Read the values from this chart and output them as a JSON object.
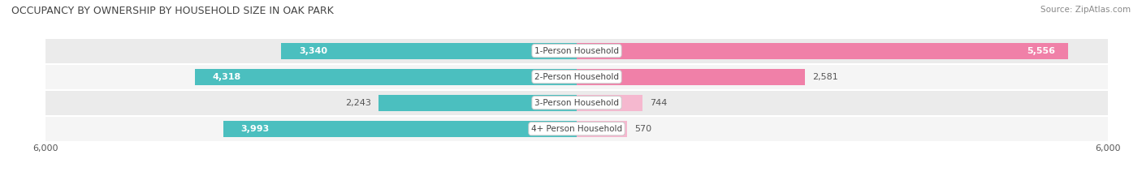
{
  "title": "OCCUPANCY BY OWNERSHIP BY HOUSEHOLD SIZE IN OAK PARK",
  "source": "Source: ZipAtlas.com",
  "categories": [
    "1-Person Household",
    "2-Person Household",
    "3-Person Household",
    "4+ Person Household"
  ],
  "owner_values": [
    3340,
    4318,
    2243,
    3993
  ],
  "renter_values": [
    5556,
    2581,
    744,
    570
  ],
  "owner_color": "#4BBFBF",
  "renter_color": "#F080A8",
  "renter_color_light": "#F5B8CF",
  "axis_max": 6000,
  "title_fontsize": 9,
  "source_fontsize": 7.5,
  "label_fontsize": 8,
  "tick_fontsize": 8,
  "category_fontsize": 7.5,
  "bar_height": 0.62,
  "row_bg_even": "#EBEBEB",
  "row_bg_odd": "#F5F5F5"
}
